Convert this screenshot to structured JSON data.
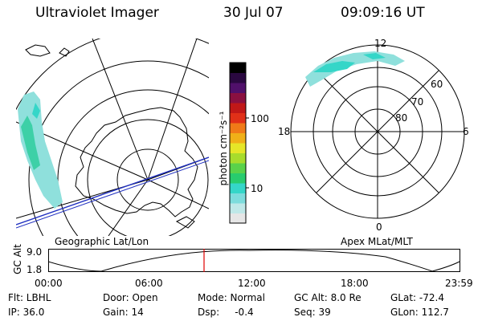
{
  "header": {
    "title": "Ultraviolet Imager",
    "date": "30 Jul 07",
    "time": "09:09:16 UT"
  },
  "colorbar": {
    "label": "photon cm⁻²s⁻¹",
    "ticks": [
      "100",
      "10"
    ],
    "scale": "log",
    "colors": [
      "#e6e6e6",
      "#bfe8e8",
      "#7ddcdc",
      "#35d6c8",
      "#28cc6e",
      "#5ad24a",
      "#a8dc2c",
      "#e6e628",
      "#f0b018",
      "#f07a18",
      "#e03018",
      "#c01818",
      "#8a1040",
      "#50106a",
      "#2a0840",
      "#000000"
    ]
  },
  "left_map": {
    "label": "Geographic Lat/Lon"
  },
  "right_map": {
    "label": "Apex MLat/MLT",
    "mlt_labels": {
      "top": "12",
      "right": "6",
      "bottom": "0",
      "left": "18"
    },
    "lat_labels": [
      "60",
      "70",
      "80"
    ]
  },
  "altitude_strip": {
    "ylabel": "GC Alt",
    "ymax": "9.0",
    "ymin": "1.8",
    "time_ticks": [
      "00:00",
      "06:00",
      "12:00",
      "18:00",
      "23:59"
    ],
    "marker_color": "#e00000"
  },
  "info": {
    "flt": "Flt: LBHL",
    "ip": "IP: 36.0",
    "door": "Door: Open",
    "gain": "Gain: 14",
    "mode": "Mode: Normal",
    "dsp": "Dsp:     -0.4",
    "gc_alt": "GC Alt: 8.0 Re",
    "seq": "Seq: 39",
    "glat": "GLat: -72.4",
    "glon": "GLon: 112.7"
  }
}
